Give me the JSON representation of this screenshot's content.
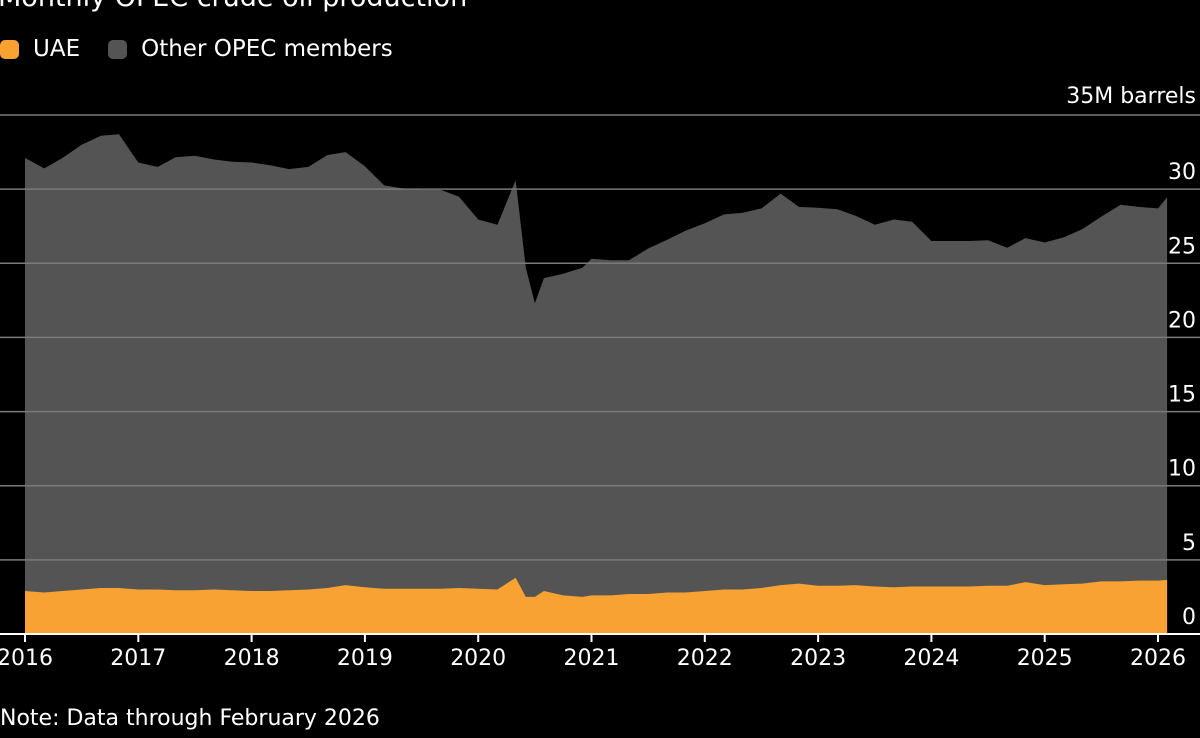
{
  "title": "Monthly OPEC crude oil production",
  "note": "Note: Data through February 2026",
  "colors": {
    "uae": "#f7a232",
    "other": "#545454",
    "grid": "#7a7a7a",
    "background": "#000000",
    "text": "#ffffff"
  },
  "chart_data": {
    "type": "area",
    "stacked": true,
    "title": "Monthly OPEC crude oil production",
    "y_unit_label": "35M barrels",
    "ylim": [
      0,
      35
    ],
    "y_ticks": [
      0,
      5,
      10,
      15,
      20,
      25,
      30,
      35
    ],
    "y_tick_labels": [
      "0",
      "5",
      "10",
      "15",
      "20",
      "25",
      "30",
      "35M barrels"
    ],
    "x_ticks": [
      2016,
      2017,
      2018,
      2019,
      2020,
      2021,
      2022,
      2023,
      2024,
      2025,
      2026
    ],
    "x_tick_labels": [
      "2016",
      "2017",
      "2018",
      "2019",
      "2020",
      "2021",
      "2022",
      "2023",
      "2024",
      "2025",
      "2026"
    ],
    "legend": [
      {
        "name": "UAE",
        "color": "#f7a232"
      },
      {
        "name": "Other OPEC members",
        "color": "#545454"
      }
    ],
    "x": [
      2016.0,
      2016.17,
      2016.33,
      2016.5,
      2016.67,
      2016.83,
      2017.0,
      2017.17,
      2017.33,
      2017.5,
      2017.67,
      2017.83,
      2018.0,
      2018.17,
      2018.33,
      2018.5,
      2018.67,
      2018.83,
      2019.0,
      2019.17,
      2019.33,
      2019.5,
      2019.67,
      2019.83,
      2020.0,
      2020.17,
      2020.33,
      2020.42,
      2020.5,
      2020.58,
      2020.75,
      2020.92,
      2021.0,
      2021.17,
      2021.33,
      2021.5,
      2021.67,
      2021.83,
      2022.0,
      2022.17,
      2022.33,
      2022.5,
      2022.67,
      2022.83,
      2023.0,
      2023.17,
      2023.33,
      2023.5,
      2023.67,
      2023.83,
      2024.0,
      2024.17,
      2024.33,
      2024.5,
      2024.67,
      2024.83,
      2025.0,
      2025.17,
      2025.33,
      2025.5,
      2025.67,
      2025.83,
      2026.0,
      2026.08
    ],
    "series": [
      {
        "name": "UAE",
        "values": [
          2.9,
          2.8,
          2.9,
          3.0,
          3.1,
          3.1,
          3.0,
          3.0,
          2.95,
          2.95,
          3.0,
          2.95,
          2.9,
          2.9,
          2.95,
          3.0,
          3.1,
          3.3,
          3.15,
          3.05,
          3.05,
          3.05,
          3.05,
          3.1,
          3.05,
          3.0,
          3.8,
          2.5,
          2.5,
          2.9,
          2.6,
          2.5,
          2.6,
          2.6,
          2.7,
          2.7,
          2.8,
          2.8,
          2.9,
          3.0,
          3.0,
          3.1,
          3.3,
          3.4,
          3.25,
          3.25,
          3.3,
          3.2,
          3.15,
          3.2,
          3.2,
          3.2,
          3.2,
          3.25,
          3.25,
          3.5,
          3.3,
          3.35,
          3.4,
          3.55,
          3.55,
          3.6,
          3.6,
          3.65
        ]
      },
      {
        "name": "Other OPEC members",
        "values": [
          29.2,
          28.6,
          29.2,
          30.0,
          30.5,
          30.6,
          28.8,
          28.5,
          29.2,
          29.3,
          29.0,
          28.9,
          28.9,
          28.7,
          28.4,
          28.5,
          29.2,
          29.2,
          28.4,
          27.2,
          27.0,
          26.9,
          26.9,
          26.4,
          24.9,
          24.6,
          26.8,
          22.2,
          19.8,
          21.1,
          21.7,
          22.2,
          22.7,
          22.6,
          22.5,
          23.3,
          23.8,
          24.4,
          24.8,
          25.3,
          25.4,
          25.6,
          26.4,
          25.4,
          25.5,
          25.4,
          24.9,
          24.4,
          24.8,
          24.6,
          23.3,
          23.3,
          23.3,
          23.3,
          22.8,
          23.2,
          23.1,
          23.4,
          23.9,
          24.6,
          25.4,
          25.2,
          25.1,
          25.8
        ]
      }
    ]
  }
}
